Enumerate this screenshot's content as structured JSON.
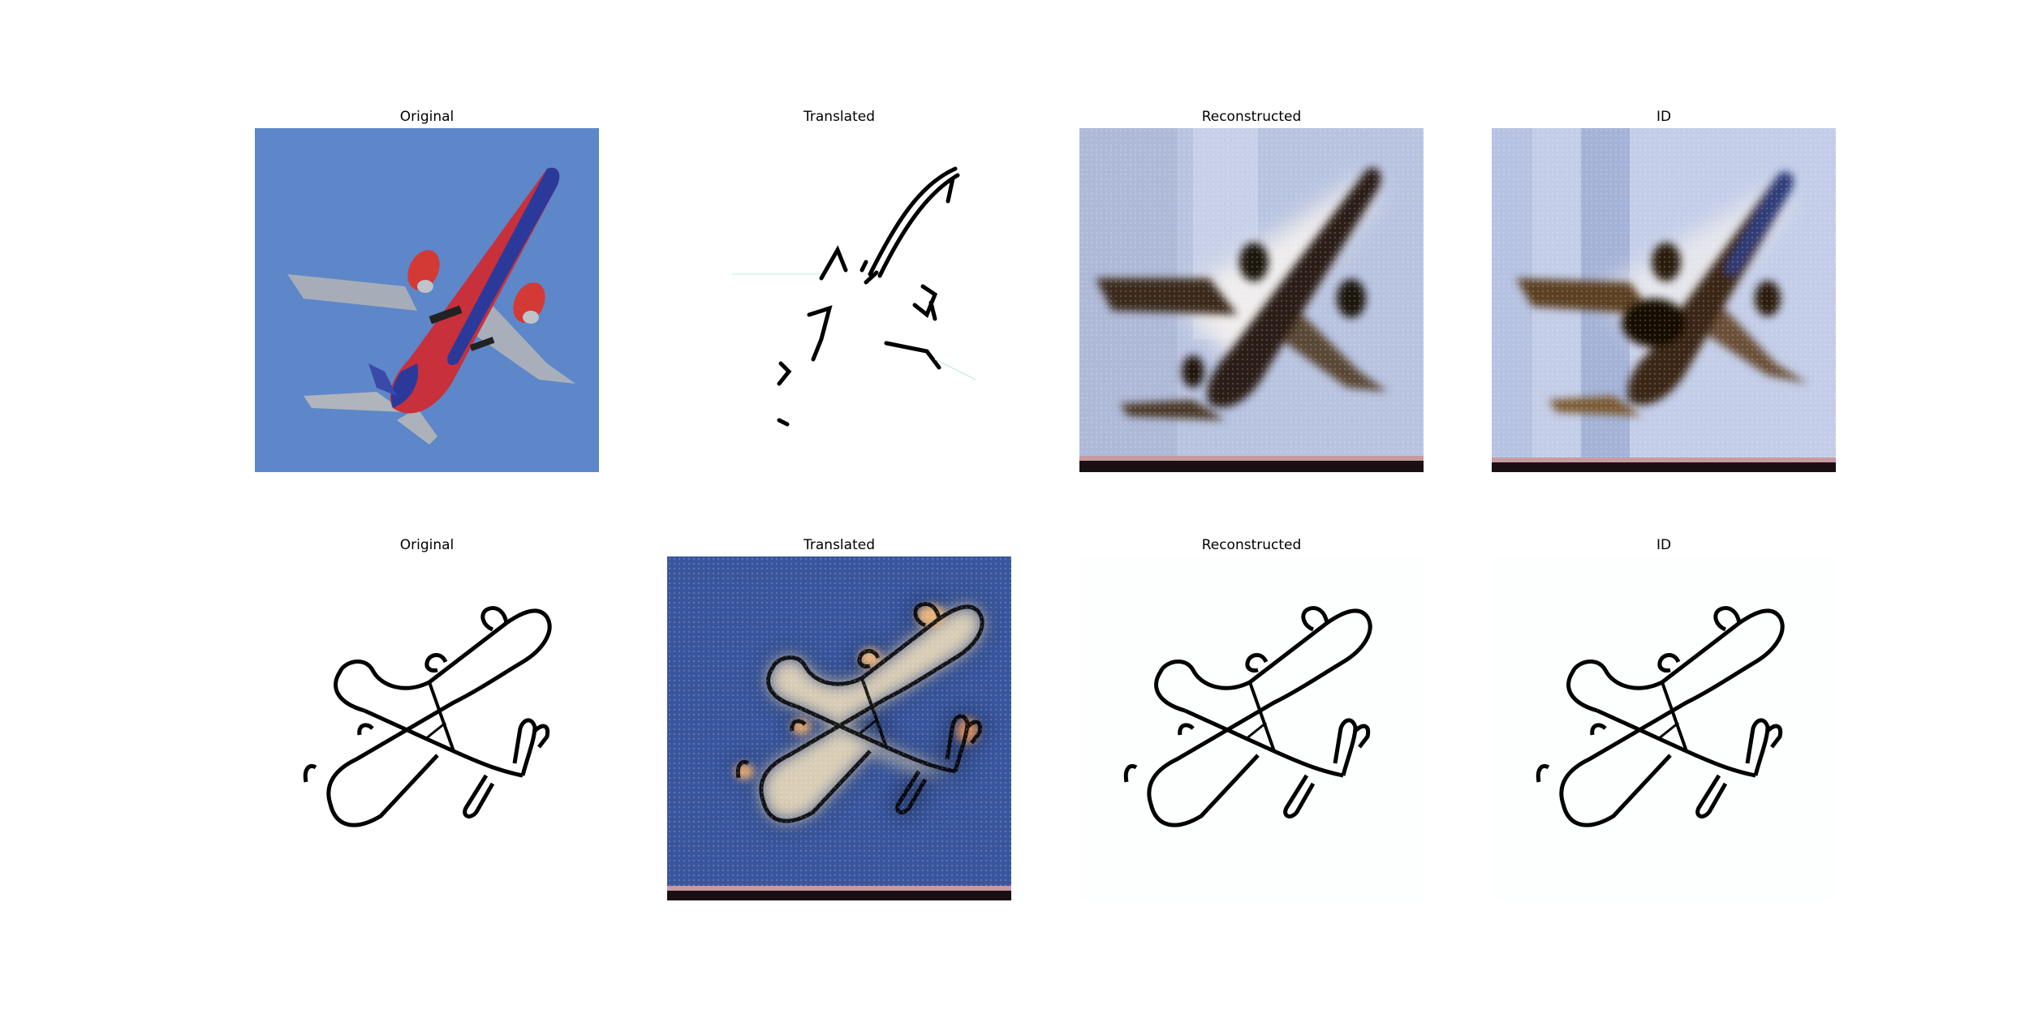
{
  "rows": [
    {
      "titles": [
        "Original",
        "Translated",
        "Reconstructed",
        "ID"
      ]
    },
    {
      "titles": [
        "Original",
        "Translated",
        "Reconstructed",
        "ID"
      ]
    }
  ]
}
